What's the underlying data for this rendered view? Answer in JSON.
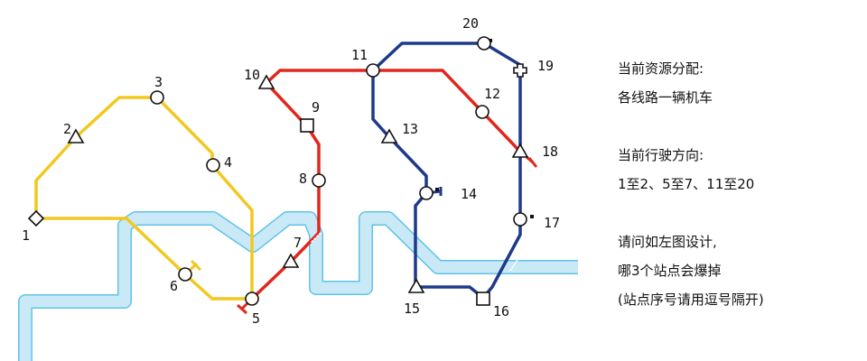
{
  "colors": {
    "river_fill": "#c9e9f7",
    "river_edge": "#5fc3e8",
    "yellow": "#f2c81f",
    "red": "#e2261c",
    "blue": "#1e3a8a",
    "station_stroke": "#111111"
  },
  "stations": [
    {
      "id": "1",
      "shape": "diamond",
      "label": "1"
    },
    {
      "id": "2",
      "shape": "triangle",
      "label": "2"
    },
    {
      "id": "3",
      "shape": "circle",
      "label": "3"
    },
    {
      "id": "4",
      "shape": "circle",
      "label": "4"
    },
    {
      "id": "5",
      "shape": "circle",
      "label": "5"
    },
    {
      "id": "6",
      "shape": "circle",
      "label": "6"
    },
    {
      "id": "7",
      "shape": "triangle",
      "label": "7"
    },
    {
      "id": "8",
      "shape": "circle",
      "label": "8"
    },
    {
      "id": "9",
      "shape": "square",
      "label": "9"
    },
    {
      "id": "10",
      "shape": "triangle",
      "label": "10"
    },
    {
      "id": "11",
      "shape": "circle",
      "label": "11"
    },
    {
      "id": "12",
      "shape": "circle",
      "label": "12"
    },
    {
      "id": "13",
      "shape": "triangle",
      "label": "13"
    },
    {
      "id": "14",
      "shape": "circle",
      "label": "14"
    },
    {
      "id": "15",
      "shape": "triangle",
      "label": "15"
    },
    {
      "id": "16",
      "shape": "square",
      "label": "16"
    },
    {
      "id": "17",
      "shape": "circle",
      "label": "17"
    },
    {
      "id": "18",
      "shape": "triangle",
      "label": "18"
    },
    {
      "id": "19",
      "shape": "cross",
      "label": "19"
    },
    {
      "id": "20",
      "shape": "circle",
      "label": "20"
    }
  ],
  "lines": [
    {
      "name": "yellow",
      "color": "#f2c81f"
    },
    {
      "name": "red",
      "color": "#e2261c"
    },
    {
      "name": "blue",
      "color": "#1e3a8a"
    }
  ],
  "question": {
    "line1": "当前资源分配:",
    "line2": "各线路一辆机车",
    "line3": "当前行驶方向:",
    "line4": "1至2、5至7、11至20",
    "line5": "请问如左图设计,",
    "line6": "哪3个站点会爆掉",
    "line7": "(站点序号请用逗号隔开)"
  }
}
